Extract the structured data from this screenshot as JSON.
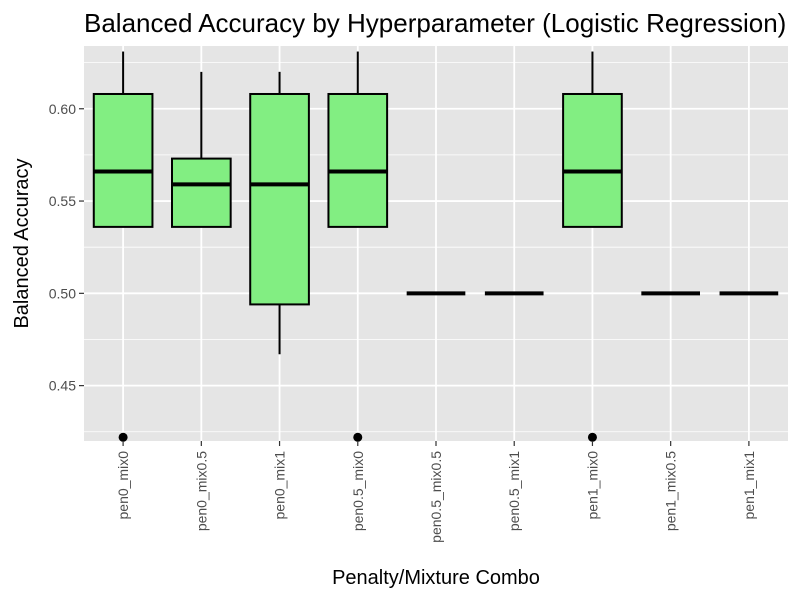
{
  "chart_data": {
    "type": "boxplot",
    "title": "Balanced Accuracy by Hyperparameter (Logistic Regression)",
    "xlabel": "Penalty/Mixture Combo",
    "ylabel": "Balanced Accuracy",
    "ylim": [
      0.42,
      0.634
    ],
    "y_ticks": [
      "0.45",
      "0.50",
      "0.55",
      "0.60"
    ],
    "grid": true,
    "legend": "none",
    "colors": {
      "panel_background": "#e5e5e5",
      "grid": "#ffffff",
      "box_fill": "#82ee82",
      "box_outline": "#000000",
      "outlier": "#000000"
    },
    "categories": [
      "pen0_mix0",
      "pen0_mix0.5",
      "pen0_mix1",
      "pen0.5_mix0",
      "pen0.5_mix0.5",
      "pen0.5_mix1",
      "pen1_mix0",
      "pen1_mix0.5",
      "pen1_mix1"
    ],
    "boxes": [
      {
        "category": "pen0_mix0",
        "whisker_low": 0.536,
        "q1": 0.536,
        "median": 0.566,
        "q3": 0.608,
        "whisker_high": 0.631,
        "outliers": [
          0.422
        ]
      },
      {
        "category": "pen0_mix0.5",
        "whisker_low": 0.536,
        "q1": 0.536,
        "median": 0.559,
        "q3": 0.573,
        "whisker_high": 0.62,
        "outliers": []
      },
      {
        "category": "pen0_mix1",
        "whisker_low": 0.467,
        "q1": 0.494,
        "median": 0.559,
        "q3": 0.608,
        "whisker_high": 0.62,
        "outliers": []
      },
      {
        "category": "pen0.5_mix0",
        "whisker_low": 0.536,
        "q1": 0.536,
        "median": 0.566,
        "q3": 0.608,
        "whisker_high": 0.631,
        "outliers": [
          0.422
        ]
      },
      {
        "category": "pen0.5_mix0.5",
        "whisker_low": 0.5,
        "q1": 0.5,
        "median": 0.5,
        "q3": 0.5,
        "whisker_high": 0.5,
        "outliers": []
      },
      {
        "category": "pen0.5_mix1",
        "whisker_low": 0.5,
        "q1": 0.5,
        "median": 0.5,
        "q3": 0.5,
        "whisker_high": 0.5,
        "outliers": []
      },
      {
        "category": "pen1_mix0",
        "whisker_low": 0.536,
        "q1": 0.536,
        "median": 0.566,
        "q3": 0.608,
        "whisker_high": 0.631,
        "outliers": [
          0.422
        ]
      },
      {
        "category": "pen1_mix0.5",
        "whisker_low": 0.5,
        "q1": 0.5,
        "median": 0.5,
        "q3": 0.5,
        "whisker_high": 0.5,
        "outliers": []
      },
      {
        "category": "pen1_mix1",
        "whisker_low": 0.5,
        "q1": 0.5,
        "median": 0.5,
        "q3": 0.5,
        "whisker_high": 0.5,
        "outliers": []
      }
    ]
  }
}
